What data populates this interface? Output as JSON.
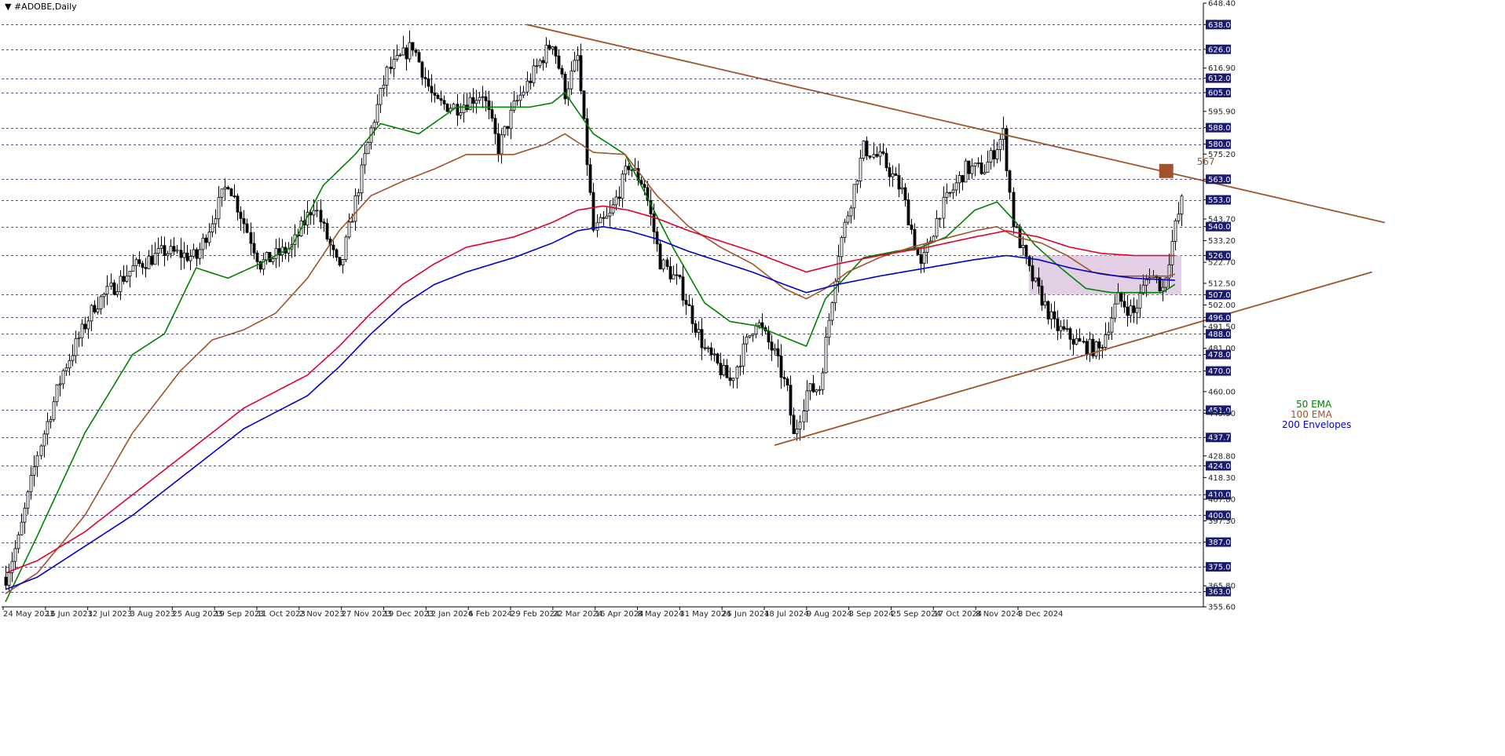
{
  "chart_data": {
    "type": "candlestick",
    "title": "▼ #ADOBE,Daily",
    "ylim": [
      355.6,
      648.4
    ],
    "grid": "dashed horizontal lines at key levels",
    "y_ticks": [
      "648.40",
      "638.00",
      "626.00",
      "616.90",
      "612.00",
      "605.00",
      "595.90",
      "588.00",
      "580.00",
      "575.20",
      "563.00",
      "553.00",
      "543.70",
      "540.00",
      "533.20",
      "526.00",
      "522.70",
      "512.50",
      "507.00",
      "502.00",
      "496.00",
      "491.50",
      "488.00",
      "481.00",
      "478.00",
      "470.00",
      "460.00",
      "451.00",
      "449.50",
      "437.75",
      "428.80",
      "424.00",
      "418.30",
      "410.00",
      "407.80",
      "400.00",
      "397.30",
      "387.00",
      "375.00",
      "365.80",
      "363.00",
      "355.60"
    ],
    "highlighted_levels": [
      638,
      626,
      612,
      605,
      588,
      580,
      563,
      553,
      540,
      526,
      507,
      496,
      488,
      478,
      470,
      451,
      437.75,
      424,
      410,
      400,
      387,
      375,
      363
    ],
    "x_labels": [
      "24 May 2023",
      "16 Jun 2023",
      "12 Jul 2023",
      "3 Aug 2023",
      "25 Aug 2023",
      "19 Sep 2023",
      "11 Oct 2023",
      "2 Nov 2023",
      "27 Nov 2023",
      "19 Dec 2023",
      "12 Jan 2024",
      "6 Feb 2024",
      "29 Feb 2024",
      "22 Mar 2024",
      "16 Apr 2024",
      "8 May 2024",
      "31 May 2024",
      "25 Jun 2024",
      "18 Jul 2024",
      "9 Aug 2024",
      "3 Sep 2024",
      "25 Sep 2024",
      "17 Oct 2024",
      "8 Nov 2024",
      "3 Dec 2024"
    ],
    "price_path": [
      [
        0,
        370
      ],
      [
        4,
        388
      ],
      [
        10,
        430
      ],
      [
        18,
        470
      ],
      [
        28,
        502
      ],
      [
        40,
        520
      ],
      [
        50,
        528
      ],
      [
        60,
        525
      ],
      [
        70,
        562
      ],
      [
        80,
        522
      ],
      [
        90,
        530
      ],
      [
        97,
        551
      ],
      [
        105,
        518
      ],
      [
        115,
        587
      ],
      [
        120,
        615
      ],
      [
        128,
        628
      ],
      [
        135,
        600
      ],
      [
        142,
        598
      ],
      [
        150,
        605
      ],
      [
        155,
        578
      ],
      [
        160,
        598
      ],
      [
        168,
        620
      ],
      [
        172,
        630
      ],
      [
        176,
        605
      ],
      [
        180,
        622
      ],
      [
        185,
        538
      ],
      [
        190,
        545
      ],
      [
        196,
        570
      ],
      [
        201,
        560
      ],
      [
        206,
        523
      ],
      [
        212,
        512
      ],
      [
        220,
        480
      ],
      [
        228,
        465
      ],
      [
        236,
        495
      ],
      [
        242,
        478
      ],
      [
        246,
        460
      ],
      [
        248,
        438
      ],
      [
        252,
        460
      ],
      [
        256,
        462
      ],
      [
        262,
        528
      ],
      [
        270,
        578
      ],
      [
        276,
        572
      ],
      [
        282,
        557
      ],
      [
        288,
        520
      ],
      [
        294,
        548
      ],
      [
        302,
        568
      ],
      [
        308,
        568
      ],
      [
        314,
        585
      ],
      [
        317,
        542
      ],
      [
        322,
        518
      ],
      [
        330,
        492
      ],
      [
        338,
        483
      ],
      [
        344,
        480
      ],
      [
        350,
        505
      ],
      [
        355,
        498
      ],
      [
        360,
        518
      ],
      [
        364,
        510
      ],
      [
        368,
        540
      ],
      [
        370,
        552
      ]
    ],
    "n_bars": 372,
    "series": [
      {
        "name": "50 EMA",
        "color": "#008000",
        "points": [
          [
            0,
            358
          ],
          [
            10,
            390
          ],
          [
            25,
            440
          ],
          [
            40,
            478
          ],
          [
            50,
            488
          ],
          [
            60,
            520
          ],
          [
            70,
            515
          ],
          [
            80,
            522
          ],
          [
            90,
            530
          ],
          [
            100,
            560
          ],
          [
            110,
            575
          ],
          [
            118,
            590
          ],
          [
            130,
            585
          ],
          [
            142,
            598
          ],
          [
            155,
            598
          ],
          [
            165,
            598
          ],
          [
            172,
            600
          ],
          [
            176,
            605
          ],
          [
            185,
            585
          ],
          [
            195,
            575
          ],
          [
            200,
            560
          ],
          [
            210,
            530
          ],
          [
            220,
            503
          ],
          [
            228,
            494
          ],
          [
            236,
            492
          ],
          [
            244,
            487
          ],
          [
            252,
            482
          ],
          [
            258,
            505
          ],
          [
            264,
            515
          ],
          [
            270,
            525
          ],
          [
            280,
            528
          ],
          [
            288,
            530
          ],
          [
            296,
            535
          ],
          [
            305,
            548
          ],
          [
            312,
            552
          ],
          [
            318,
            542
          ],
          [
            324,
            531
          ],
          [
            332,
            520
          ],
          [
            340,
            510
          ],
          [
            348,
            508
          ],
          [
            356,
            508
          ],
          [
            364,
            508
          ],
          [
            368,
            512
          ]
        ]
      },
      {
        "name": "100 EMA",
        "color": "#a0522d",
        "points": [
          [
            0,
            362
          ],
          [
            10,
            372
          ],
          [
            25,
            400
          ],
          [
            40,
            440
          ],
          [
            55,
            470
          ],
          [
            65,
            485
          ],
          [
            75,
            490
          ],
          [
            85,
            498
          ],
          [
            95,
            515
          ],
          [
            105,
            538
          ],
          [
            115,
            555
          ],
          [
            125,
            562
          ],
          [
            135,
            568
          ],
          [
            145,
            575
          ],
          [
            160,
            575
          ],
          [
            170,
            580
          ],
          [
            176,
            585
          ],
          [
            185,
            576
          ],
          [
            195,
            575
          ],
          [
            205,
            555
          ],
          [
            215,
            540
          ],
          [
            225,
            530
          ],
          [
            235,
            522
          ],
          [
            245,
            510
          ],
          [
            252,
            505
          ],
          [
            258,
            510
          ],
          [
            265,
            518
          ],
          [
            275,
            525
          ],
          [
            285,
            530
          ],
          [
            295,
            534
          ],
          [
            305,
            538
          ],
          [
            312,
            540
          ],
          [
            318,
            535
          ],
          [
            326,
            532
          ],
          [
            334,
            526
          ],
          [
            342,
            518
          ],
          [
            350,
            516
          ],
          [
            358,
            516
          ],
          [
            366,
            516
          ],
          [
            368,
            517
          ]
        ]
      },
      {
        "name": "200 Envelopes upper",
        "color": "#e0002a",
        "points": [
          [
            0,
            372
          ],
          [
            10,
            378
          ],
          [
            25,
            392
          ],
          [
            40,
            410
          ],
          [
            55,
            428
          ],
          [
            65,
            440
          ],
          [
            75,
            452
          ],
          [
            85,
            460
          ],
          [
            95,
            468
          ],
          [
            105,
            482
          ],
          [
            115,
            498
          ],
          [
            125,
            512
          ],
          [
            135,
            522
          ],
          [
            145,
            530
          ],
          [
            160,
            535
          ],
          [
            172,
            542
          ],
          [
            180,
            548
          ],
          [
            188,
            550
          ],
          [
            196,
            548
          ],
          [
            205,
            544
          ],
          [
            215,
            538
          ],
          [
            225,
            533
          ],
          [
            235,
            528
          ],
          [
            245,
            522
          ],
          [
            252,
            518
          ],
          [
            262,
            522
          ],
          [
            275,
            526
          ],
          [
            290,
            530
          ],
          [
            305,
            535
          ],
          [
            315,
            538
          ],
          [
            325,
            535
          ],
          [
            335,
            530
          ],
          [
            345,
            527
          ],
          [
            355,
            526
          ],
          [
            368,
            526
          ]
        ]
      },
      {
        "name": "200 Envelopes lower",
        "color": "#0000cc",
        "points": [
          [
            0,
            364
          ],
          [
            10,
            370
          ],
          [
            25,
            385
          ],
          [
            40,
            400
          ],
          [
            55,
            418
          ],
          [
            65,
            430
          ],
          [
            75,
            442
          ],
          [
            85,
            450
          ],
          [
            95,
            458
          ],
          [
            105,
            472
          ],
          [
            115,
            488
          ],
          [
            125,
            502
          ],
          [
            135,
            512
          ],
          [
            145,
            518
          ],
          [
            160,
            525
          ],
          [
            172,
            532
          ],
          [
            180,
            538
          ],
          [
            188,
            540
          ],
          [
            196,
            538
          ],
          [
            205,
            534
          ],
          [
            215,
            528
          ],
          [
            225,
            523
          ],
          [
            235,
            518
          ],
          [
            245,
            512
          ],
          [
            252,
            508
          ],
          [
            262,
            512
          ],
          [
            275,
            516
          ],
          [
            290,
            520
          ],
          [
            305,
            524
          ],
          [
            315,
            526
          ],
          [
            325,
            524
          ],
          [
            335,
            520
          ],
          [
            345,
            517
          ],
          [
            355,
            515
          ],
          [
            368,
            514
          ]
        ]
      }
    ],
    "trendlines": [
      {
        "name": "descending resistance",
        "color": "#a0522d",
        "from": [
          164,
          638
        ],
        "to": [
          434,
          542
        ]
      },
      {
        "name": "ascending support",
        "color": "#a0522d",
        "from": [
          242,
          434
        ],
        "to": [
          430,
          518
        ]
      }
    ],
    "zone": {
      "x_from": 322,
      "x_to": 370,
      "y_from": 507,
      "y_to": 526,
      "color": "#d9bfdc"
    },
    "target": {
      "label": "567",
      "x": 365,
      "y": 567,
      "color": "#a0522d"
    },
    "legend": [
      {
        "label": "50 EMA",
        "color": "#008000"
      },
      {
        "label": "100 EMA",
        "color": "#a0522d"
      },
      {
        "label": "200 Envelopes",
        "color": "#0000cc"
      }
    ]
  }
}
